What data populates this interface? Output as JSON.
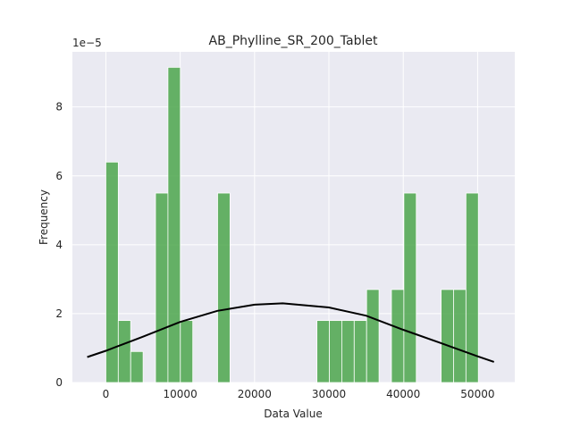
{
  "chart_data": {
    "type": "bar",
    "title": "AB_Phylline_SR_200_Tablet",
    "xlabel": "Data Value",
    "ylabel": "Frequency",
    "y_offset_label": "1e−5",
    "xlim": [
      -4500,
      55000
    ],
    "ylim": [
      0,
      9.6
    ],
    "xticks": [
      0,
      10000,
      20000,
      30000,
      40000,
      50000
    ],
    "xtick_labels": [
      "0",
      "10000",
      "20000",
      "30000",
      "40000",
      "50000"
    ],
    "yticks": [
      0,
      2,
      4,
      6,
      8
    ],
    "ytick_labels": [
      "0",
      "2",
      "4",
      "6",
      "8"
    ],
    "grid": true,
    "bin_width": 1670,
    "series": [
      {
        "kind": "histogram",
        "color": "#4ca64c",
        "bins": [
          {
            "start": 0,
            "value": 6.4
          },
          {
            "start": 1670,
            "value": 1.8
          },
          {
            "start": 3340,
            "value": 0.9
          },
          {
            "start": 6680,
            "value": 5.5
          },
          {
            "start": 8350,
            "value": 9.15
          },
          {
            "start": 10020,
            "value": 1.8
          },
          {
            "start": 15030,
            "value": 5.5
          },
          {
            "start": 28390,
            "value": 1.8
          },
          {
            "start": 30060,
            "value": 1.8
          },
          {
            "start": 31730,
            "value": 1.8
          },
          {
            "start": 33400,
            "value": 1.8
          },
          {
            "start": 35070,
            "value": 2.7
          },
          {
            "start": 38410,
            "value": 2.7
          },
          {
            "start": 40080,
            "value": 5.5
          },
          {
            "start": 45090,
            "value": 2.7
          },
          {
            "start": 46760,
            "value": 2.7
          },
          {
            "start": 48430,
            "value": 5.5
          }
        ]
      },
      {
        "kind": "normal-curve",
        "color": "#000000",
        "mean": 23800,
        "peak": 2.3,
        "x_range": [
          -2500,
          52200
        ],
        "points": [
          [
            -2500,
            0.74
          ],
          [
            0,
            0.92
          ],
          [
            5000,
            1.33
          ],
          [
            10000,
            1.76
          ],
          [
            15000,
            2.08
          ],
          [
            20000,
            2.26
          ],
          [
            23800,
            2.3
          ],
          [
            30000,
            2.18
          ],
          [
            35000,
            1.94
          ],
          [
            40000,
            1.53
          ],
          [
            45000,
            1.15
          ],
          [
            50000,
            0.76
          ],
          [
            52200,
            0.6
          ]
        ]
      }
    ]
  }
}
